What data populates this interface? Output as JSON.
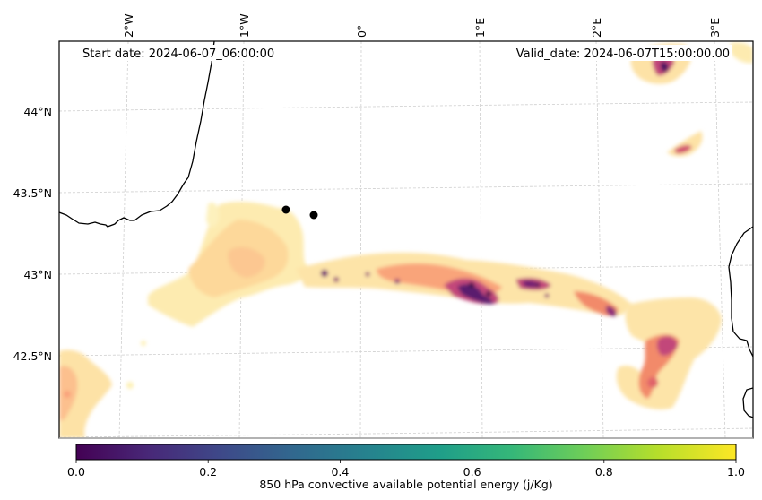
{
  "figure": {
    "start_date_text": "Start date: 2024-06-07_06:00:00",
    "valid_date_text": "Valid_date: 2024-06-07T15:00:00.00",
    "projection_note": "Lambert-style map of the Bay of Biscay / Pyrenees / Gulf of Lion region"
  },
  "map": {
    "lon_ticks": [
      "2°W",
      "1°W",
      "0°",
      "1°E",
      "2°E",
      "3°E"
    ],
    "lat_ticks": [
      "44°N",
      "43.5°N",
      "43°N",
      "42.5°N"
    ],
    "gridlines": true,
    "markers": [
      {
        "name": "point-1",
        "color": "#000000"
      },
      {
        "name": "point-2",
        "color": "#000000"
      }
    ],
    "field_colormap": "magma_r (pale yellow = low, dark purple = high)",
    "coastline_color": "#000000"
  },
  "colorbar": {
    "label": "850 hPa convective available potential energy (j/Kg)",
    "ticks": [
      "0.0",
      "0.2",
      "0.4",
      "0.6",
      "0.8",
      "1.0"
    ],
    "range": [
      0.0,
      1.0
    ],
    "colormap": "viridis",
    "stops": [
      "#440154",
      "#482878",
      "#3e4989",
      "#31688e",
      "#26828e",
      "#1f9e89",
      "#35b779",
      "#6ece58",
      "#b5de2b",
      "#fde725"
    ]
  },
  "chart_data": {
    "type": "heatmap",
    "title": "",
    "subtitle_left": "Start date: 2024-06-07_06:00:00",
    "subtitle_right": "Valid_date: 2024-06-07T15:00:00.00",
    "xlabel": "",
    "ylabel": "",
    "x_ticks": [
      "2°W",
      "1°W",
      "0°",
      "1°E",
      "2°E",
      "3°E"
    ],
    "y_ticks": [
      "44°N",
      "43.5°N",
      "43°N",
      "42.5°N"
    ],
    "xlim_deg": [
      -2.6,
      3.2
    ],
    "ylim_deg": [
      42.0,
      44.4
    ],
    "grid": true,
    "colorbar": {
      "label": "850 hPa convective available potential energy (j/Kg)",
      "range": [
        0.0,
        1.0
      ],
      "ticks": [
        0.0,
        0.2,
        0.4,
        0.6,
        0.8,
        1.0
      ],
      "placement": "bottom"
    },
    "features": [
      {
        "name": "main-cape-band",
        "description": "East-west band along ~43°N from ~1.8°W to ~2.8°E",
        "max_intensity": "high (dark purple) near 1°E and 2.3–2.6°E"
      },
      {
        "name": "west-cape-region",
        "description": "Broad pale region ~1.5°W–0.6°W, 42.8–43.3°N",
        "max_intensity": "low-moderate"
      },
      {
        "name": "sw-cape-region",
        "description": "Pale-orange area at SW corner ~2.6°W–2.1°W, 42.0–42.5°N",
        "max_intensity": "low-moderate"
      },
      {
        "name": "se-cape-region",
        "description": "Curved area ~2.0°E–2.9°E, 42.2–42.9°N",
        "max_intensity": "moderate-high"
      },
      {
        "name": "ne-cape-cell-1",
        "description": "Small cell near 2.4–2.7°E, 44.2–44.4°N",
        "max_intensity": "high"
      },
      {
        "name": "ne-cape-cell-2",
        "description": "Small cell near 2.7–2.9°E, 43.7–43.8°N",
        "max_intensity": "moderate"
      }
    ],
    "markers": [
      {
        "lon": -0.6,
        "lat": 43.4
      },
      {
        "lon": -0.35,
        "lat": 43.37
      }
    ]
  }
}
